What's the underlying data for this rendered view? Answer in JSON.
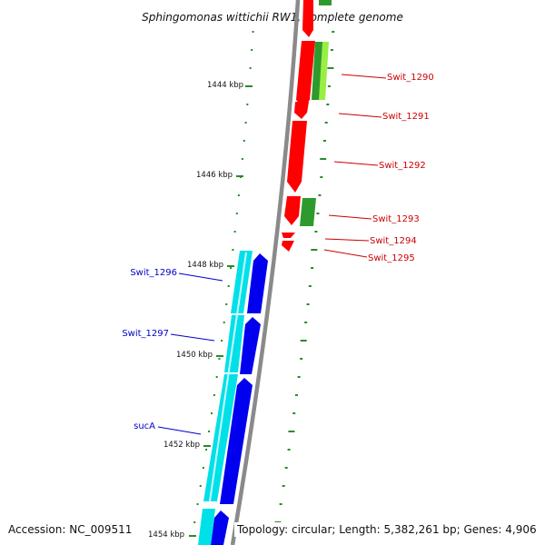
{
  "title": "Sphingomonas wittichii RW1, complete genome",
  "footer": {
    "accession": "Accession: NC_009511",
    "topology": "Topology: circular; Length: 5,382,261 bp; Genes: 4,906"
  },
  "ruler": [
    "1444 kbp",
    "1446 kbp",
    "1448 kbp",
    "1450 kbp",
    "1452 kbp",
    "1454 kbp"
  ],
  "genes_right": [
    "Swit_1290",
    "Swit_1291",
    "Swit_1292",
    "Swit_1293",
    "Swit_1294",
    "Swit_1295"
  ],
  "genes_left": [
    "Swit_1296",
    "Swit_1297",
    "sucA"
  ],
  "colors": {
    "forward_cds": "#ff0000",
    "reverse_cds": "#0000ee",
    "reverse_gene": "#00e0e8",
    "rna_gene": "#2e9a2e",
    "light_gene": "#99ee44",
    "backbone": "#888888",
    "tick": "#2a8a2a",
    "label_right": "#cc0000",
    "label_left": "#0000cc"
  }
}
